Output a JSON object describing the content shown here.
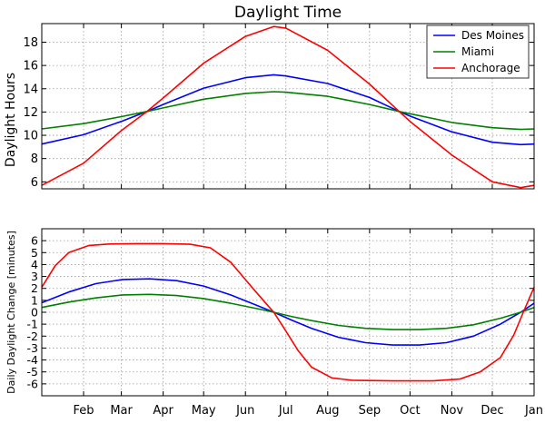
{
  "colors": {
    "des_moines": "#0000ff",
    "miami": "#008000",
    "anchorage": "#ff0000",
    "grid": "#9a9a9a"
  },
  "chart_data": [
    {
      "type": "line",
      "title": "Daylight Time",
      "xlabel": "",
      "ylabel": "Daylight Hours",
      "xlim": [
        0,
        365
      ],
      "ylim": [
        5.4,
        19.6
      ],
      "yticks": [
        6,
        8,
        10,
        12,
        14,
        16,
        18
      ],
      "grid": true,
      "legend": {
        "position": "top-right",
        "entries": [
          "Des Moines",
          "Miami",
          "Anchorage"
        ]
      },
      "series": [
        {
          "name": "Des Moines",
          "color_key": "des_moines",
          "x": [
            0,
            31,
            59,
            78,
            90,
            120,
            151,
            172,
            181,
            212,
            243,
            265,
            273,
            304,
            334,
            355,
            365
          ],
          "y": [
            9.25,
            10.05,
            11.2,
            12.05,
            12.65,
            14.05,
            14.95,
            15.2,
            15.1,
            14.45,
            13.25,
            12.05,
            11.65,
            10.3,
            9.4,
            9.2,
            9.25
          ]
        },
        {
          "name": "Miami",
          "color_key": "miami",
          "x": [
            0,
            31,
            59,
            78,
            90,
            120,
            151,
            172,
            181,
            212,
            243,
            265,
            273,
            304,
            334,
            355,
            365
          ],
          "y": [
            10.55,
            11.0,
            11.6,
            12.05,
            12.35,
            13.1,
            13.6,
            13.75,
            13.7,
            13.35,
            12.65,
            12.05,
            11.85,
            11.1,
            10.65,
            10.5,
            10.55
          ]
        },
        {
          "name": "Anchorage",
          "color_key": "anchorage",
          "x": [
            0,
            31,
            59,
            78,
            90,
            120,
            151,
            172,
            181,
            212,
            243,
            265,
            273,
            304,
            334,
            355,
            365
          ],
          "y": [
            5.7,
            7.6,
            10.4,
            12.05,
            13.2,
            16.2,
            18.5,
            19.35,
            19.2,
            17.3,
            14.4,
            12.05,
            11.2,
            8.3,
            6.0,
            5.5,
            5.7
          ]
        }
      ]
    },
    {
      "type": "line",
      "title": "",
      "xlabel": "",
      "ylabel": "Daily Daylight Change [minutes]",
      "xlim": [
        0,
        365
      ],
      "ylim": [
        -7,
        7
      ],
      "yticks": [
        -6,
        -5,
        -4,
        -3,
        -2,
        -1,
        0,
        1,
        2,
        3,
        4,
        5,
        6
      ],
      "xtick_positions": [
        31,
        59,
        90,
        120,
        151,
        181,
        212,
        243,
        273,
        304,
        334,
        365
      ],
      "xtick_labels": [
        "Feb",
        "Mar",
        "Apr",
        "May",
        "Jun",
        "Jul",
        "Aug",
        "Sep",
        "Oct",
        "Nov",
        "Dec",
        "Jan"
      ],
      "grid": true,
      "series": [
        {
          "name": "Des Moines",
          "color_key": "des_moines",
          "x": [
            0,
            20,
            40,
            60,
            80,
            100,
            120,
            140,
            160,
            172,
            185,
            200,
            220,
            240,
            260,
            280,
            300,
            320,
            340,
            355,
            365
          ],
          "y": [
            0.8,
            1.7,
            2.4,
            2.75,
            2.8,
            2.65,
            2.2,
            1.45,
            0.55,
            0.0,
            -0.65,
            -1.35,
            -2.1,
            -2.55,
            -2.75,
            -2.75,
            -2.55,
            -2.0,
            -1.0,
            0.0,
            0.75
          ]
        },
        {
          "name": "Miami",
          "color_key": "miami",
          "x": [
            0,
            20,
            40,
            60,
            80,
            100,
            120,
            140,
            160,
            172,
            185,
            200,
            220,
            240,
            260,
            280,
            300,
            320,
            340,
            355,
            365
          ],
          "y": [
            0.4,
            0.85,
            1.2,
            1.45,
            1.5,
            1.4,
            1.15,
            0.75,
            0.3,
            0.0,
            -0.35,
            -0.7,
            -1.1,
            -1.35,
            -1.45,
            -1.45,
            -1.35,
            -1.05,
            -0.5,
            0.0,
            0.4
          ]
        },
        {
          "name": "Anchorage",
          "color_key": "anchorage",
          "x": [
            0,
            10,
            20,
            35,
            50,
            70,
            90,
            110,
            125,
            140,
            155,
            165,
            172,
            180,
            190,
            200,
            215,
            230,
            260,
            290,
            310,
            325,
            340,
            350,
            357,
            365
          ],
          "y": [
            2.1,
            3.9,
            5.0,
            5.6,
            5.72,
            5.75,
            5.75,
            5.7,
            5.4,
            4.2,
            2.2,
            0.9,
            0.0,
            -1.4,
            -3.2,
            -4.6,
            -5.5,
            -5.7,
            -5.75,
            -5.75,
            -5.6,
            -5.0,
            -3.8,
            -1.9,
            0.0,
            2.1
          ]
        }
      ]
    }
  ]
}
